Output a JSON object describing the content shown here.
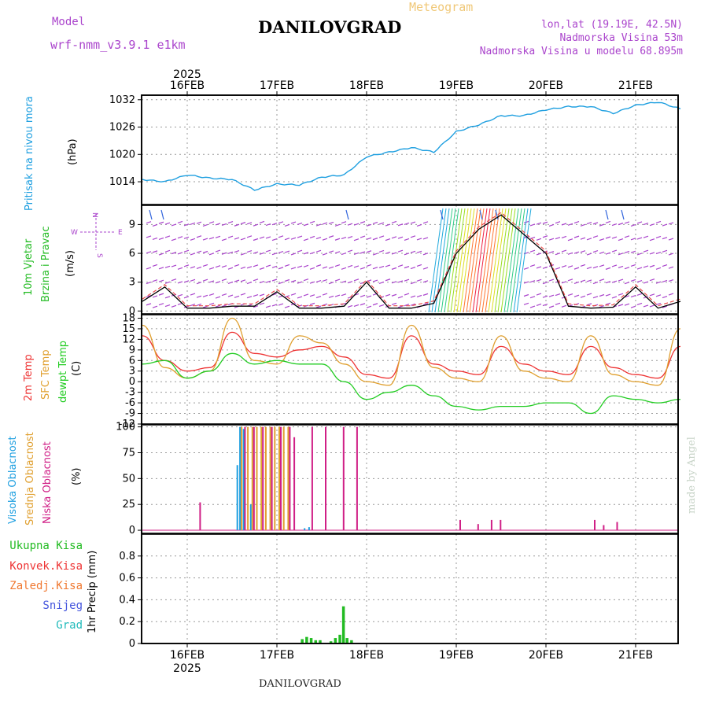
{
  "header": {
    "model_label": "Model",
    "model_name": "wrf-nmm_v3.9.1 e1km",
    "title": "DANILOVGRAD",
    "chart_kind": "Meteogram",
    "lonlat": "lon,lat (19.19E, 42.5N)",
    "altitude": "Nadmorska Visina 53m",
    "model_altitude": "Nadmorska Visina u modelu 68.895m",
    "footer_title": "DANILOVGRAD",
    "watermark": "made by Angel"
  },
  "colors": {
    "pressure": "#1e9fe0",
    "wind_label": "#22bb22",
    "temp2m": "#ee3333",
    "sfc_temp": "#e0a030",
    "dewpt": "#22cc22",
    "cloud_high": "#1e9fe0",
    "cloud_mid": "#e0a030",
    "cloud_low": "#d01f86",
    "precip": "#22bb22",
    "purple": "#aa44cc"
  },
  "chart_data": [
    {
      "type": "line",
      "panel": "pressure",
      "ylabel": [
        "Pritisak na nivou mora",
        "(hPa)"
      ],
      "x": [
        "15FEB 12",
        "15FEB 18",
        "16FEB 00",
        "16FEB 06",
        "16FEB 12",
        "16FEB 18",
        "17FEB 00",
        "17FEB 06",
        "17FEB 12",
        "17FEB 18",
        "18FEB 00",
        "18FEB 06",
        "18FEB 12",
        "18FEB 18",
        "19FEB 00",
        "19FEB 06",
        "19FEB 12",
        "19FEB 18",
        "20FEB 00",
        "20FEB 06",
        "20FEB 12",
        "20FEB 18",
        "21FEB 00",
        "21FEB 06",
        "21FEB 12"
      ],
      "series": [
        {
          "values": [
            1014.5,
            1014.0,
            1015.5,
            1014.8,
            1014.5,
            1012.2,
            1013.5,
            1013.3,
            1015.0,
            1015.5,
            1019.5,
            1020.5,
            1021.5,
            1020.5,
            1025.0,
            1026.5,
            1028.5,
            1028.5,
            1029.8,
            1030.5,
            1030.5,
            1029.0,
            1030.8,
            1031.5,
            1030.0
          ]
        }
      ],
      "xticks": [
        "16FEB",
        "17FEB",
        "18FEB",
        "19FEB",
        "20FEB",
        "21FEB"
      ],
      "year": "2025",
      "yticks": [
        "1014",
        "1020",
        "1026",
        "1032"
      ],
      "ylim": [
        1009,
        1033
      ]
    },
    {
      "type": "line",
      "panel": "wind",
      "ylabel": [
        "10m Vjetar",
        "Brzina i Pravac",
        "(m/s)"
      ],
      "compass": {
        "n": "N",
        "s": "S",
        "e": "E",
        "w": "W"
      },
      "x": [
        "15FEB 12",
        "15FEB 18",
        "16FEB 00",
        "16FEB 06",
        "16FEB 12",
        "16FEB 18",
        "17FEB 00",
        "17FEB 06",
        "17FEB 12",
        "17FEB 18",
        "18FEB 00",
        "18FEB 06",
        "18FEB 12",
        "18FEB 18",
        "19FEB 00",
        "19FEB 06",
        "19FEB 12",
        "19FEB 18",
        "20FEB 00",
        "20FEB 06",
        "20FEB 12",
        "20FEB 18",
        "21FEB 00",
        "21FEB 06",
        "21FEB 12"
      ],
      "series": [
        {
          "values": [
            1.0,
            2.5,
            0.3,
            0.3,
            0.5,
            0.5,
            2.0,
            0.3,
            0.3,
            0.5,
            3.0,
            0.3,
            0.3,
            0.8,
            6.0,
            8.5,
            10.0,
            8.0,
            6.0,
            0.5,
            0.3,
            0.4,
            2.5,
            0.3,
            1.0
          ]
        }
      ],
      "yticks": [
        "0",
        "3",
        "6",
        "9"
      ],
      "ylim": [
        -0.3,
        11.0
      ]
    },
    {
      "type": "line",
      "panel": "temperature",
      "ylabel": [
        "2m Temp",
        "SFC Temp",
        "dewpt Temp",
        "(C)"
      ],
      "x": [
        "15FEB 12",
        "15FEB 18",
        "16FEB 00",
        "16FEB 06",
        "16FEB 12",
        "16FEB 18",
        "17FEB 00",
        "17FEB 06",
        "17FEB 12",
        "17FEB 18",
        "18FEB 00",
        "18FEB 06",
        "18FEB 12",
        "18FEB 18",
        "19FEB 00",
        "19FEB 06",
        "19FEB 12",
        "19FEB 18",
        "20FEB 00",
        "20FEB 06",
        "20FEB 12",
        "20FEB 18",
        "21FEB 00",
        "21FEB 06",
        "21FEB 12"
      ],
      "series": [
        {
          "values": [
            13,
            6,
            3,
            4,
            14,
            8,
            7,
            9,
            10,
            7,
            2,
            1,
            13,
            5,
            3,
            2,
            10,
            5,
            3,
            2,
            10,
            4,
            2,
            1,
            10
          ]
        },
        {
          "values": [
            16,
            4,
            1,
            3,
            18,
            6,
            5,
            13,
            11,
            5,
            0,
            -1,
            16,
            4,
            1,
            0,
            13,
            3,
            1,
            0,
            13,
            2,
            0,
            -1,
            15
          ]
        },
        {
          "values": [
            5,
            6,
            1,
            3,
            8,
            5,
            6,
            5,
            5,
            0,
            -5,
            -3,
            -1,
            -4,
            -7,
            -8,
            -7,
            -7,
            -6,
            -6,
            -9,
            -4,
            -5,
            -6,
            -5
          ]
        }
      ],
      "yticks": [
        "-12",
        "-9",
        "-6",
        "-3",
        "0",
        "3",
        "6",
        "9",
        "12",
        "15",
        "18"
      ],
      "ylim": [
        -12,
        19
      ]
    },
    {
      "type": "bar",
      "panel": "cloud",
      "ylabel": [
        "Visoka Oblacnost",
        "Srednja Oblacnost",
        "Niska Oblacnost",
        "(%)"
      ],
      "series": [
        {
          "values": [
            [
              16.55,
              63
            ],
            [
              16.58,
              100
            ],
            [
              16.62,
              98
            ],
            [
              16.7,
              25
            ],
            [
              17.3,
              2
            ],
            [
              17.35,
              3
            ]
          ]
        },
        {
          "values": [
            [
              16.58,
              100
            ],
            [
              16.65,
              100
            ],
            [
              16.7,
              100
            ],
            [
              16.75,
              100
            ],
            [
              16.8,
              100
            ],
            [
              16.85,
              100
            ],
            [
              16.9,
              100
            ],
            [
              16.95,
              100
            ],
            [
              17.0,
              100
            ],
            [
              17.05,
              100
            ],
            [
              17.1,
              100
            ]
          ]
        },
        {
          "values": [
            [
              16.1,
              27
            ],
            [
              16.6,
              100
            ],
            [
              16.7,
              100
            ],
            [
              16.8,
              100
            ],
            [
              16.9,
              100
            ],
            [
              17.0,
              100
            ],
            [
              17.1,
              100
            ],
            [
              17.15,
              90
            ],
            [
              17.35,
              100
            ],
            [
              17.5,
              100
            ],
            [
              17.7,
              100
            ],
            [
              17.85,
              100
            ],
            [
              19.0,
              10
            ],
            [
              19.2,
              6
            ],
            [
              19.35,
              10
            ],
            [
              19.45,
              10
            ],
            [
              20.5,
              10
            ],
            [
              20.6,
              5
            ],
            [
              20.75,
              8
            ]
          ]
        }
      ],
      "yticks": [
        "0",
        "25",
        "50",
        "75",
        "100"
      ],
      "ylim": [
        -3,
        102
      ]
    },
    {
      "type": "bar",
      "panel": "precip",
      "ylabel": [
        "1hr Precip (mm)"
      ],
      "legend": [
        "Ukupna Kisa",
        "Konvek.Kisa",
        "Zaledj.Kisa",
        "Snijeg",
        "Grad"
      ],
      "series": [
        {
          "values": [
            [
              17.28,
              0.04
            ],
            [
              17.33,
              0.06
            ],
            [
              17.38,
              0.05
            ],
            [
              17.43,
              0.03
            ],
            [
              17.48,
              0.03
            ],
            [
              17.6,
              0.02
            ],
            [
              17.65,
              0.05
            ],
            [
              17.7,
              0.08
            ],
            [
              17.74,
              0.34
            ],
            [
              17.78,
              0.05
            ],
            [
              17.83,
              0.03
            ]
          ]
        }
      ],
      "xticks": [
        "16FEB",
        "17FEB",
        "18FEB",
        "19FEB",
        "20FEB",
        "21FEB"
      ],
      "year": "2025",
      "yticks": [
        "0",
        "0.2",
        "0.4",
        "0.6",
        "0.8"
      ],
      "ylim": [
        0,
        1.0
      ]
    }
  ]
}
